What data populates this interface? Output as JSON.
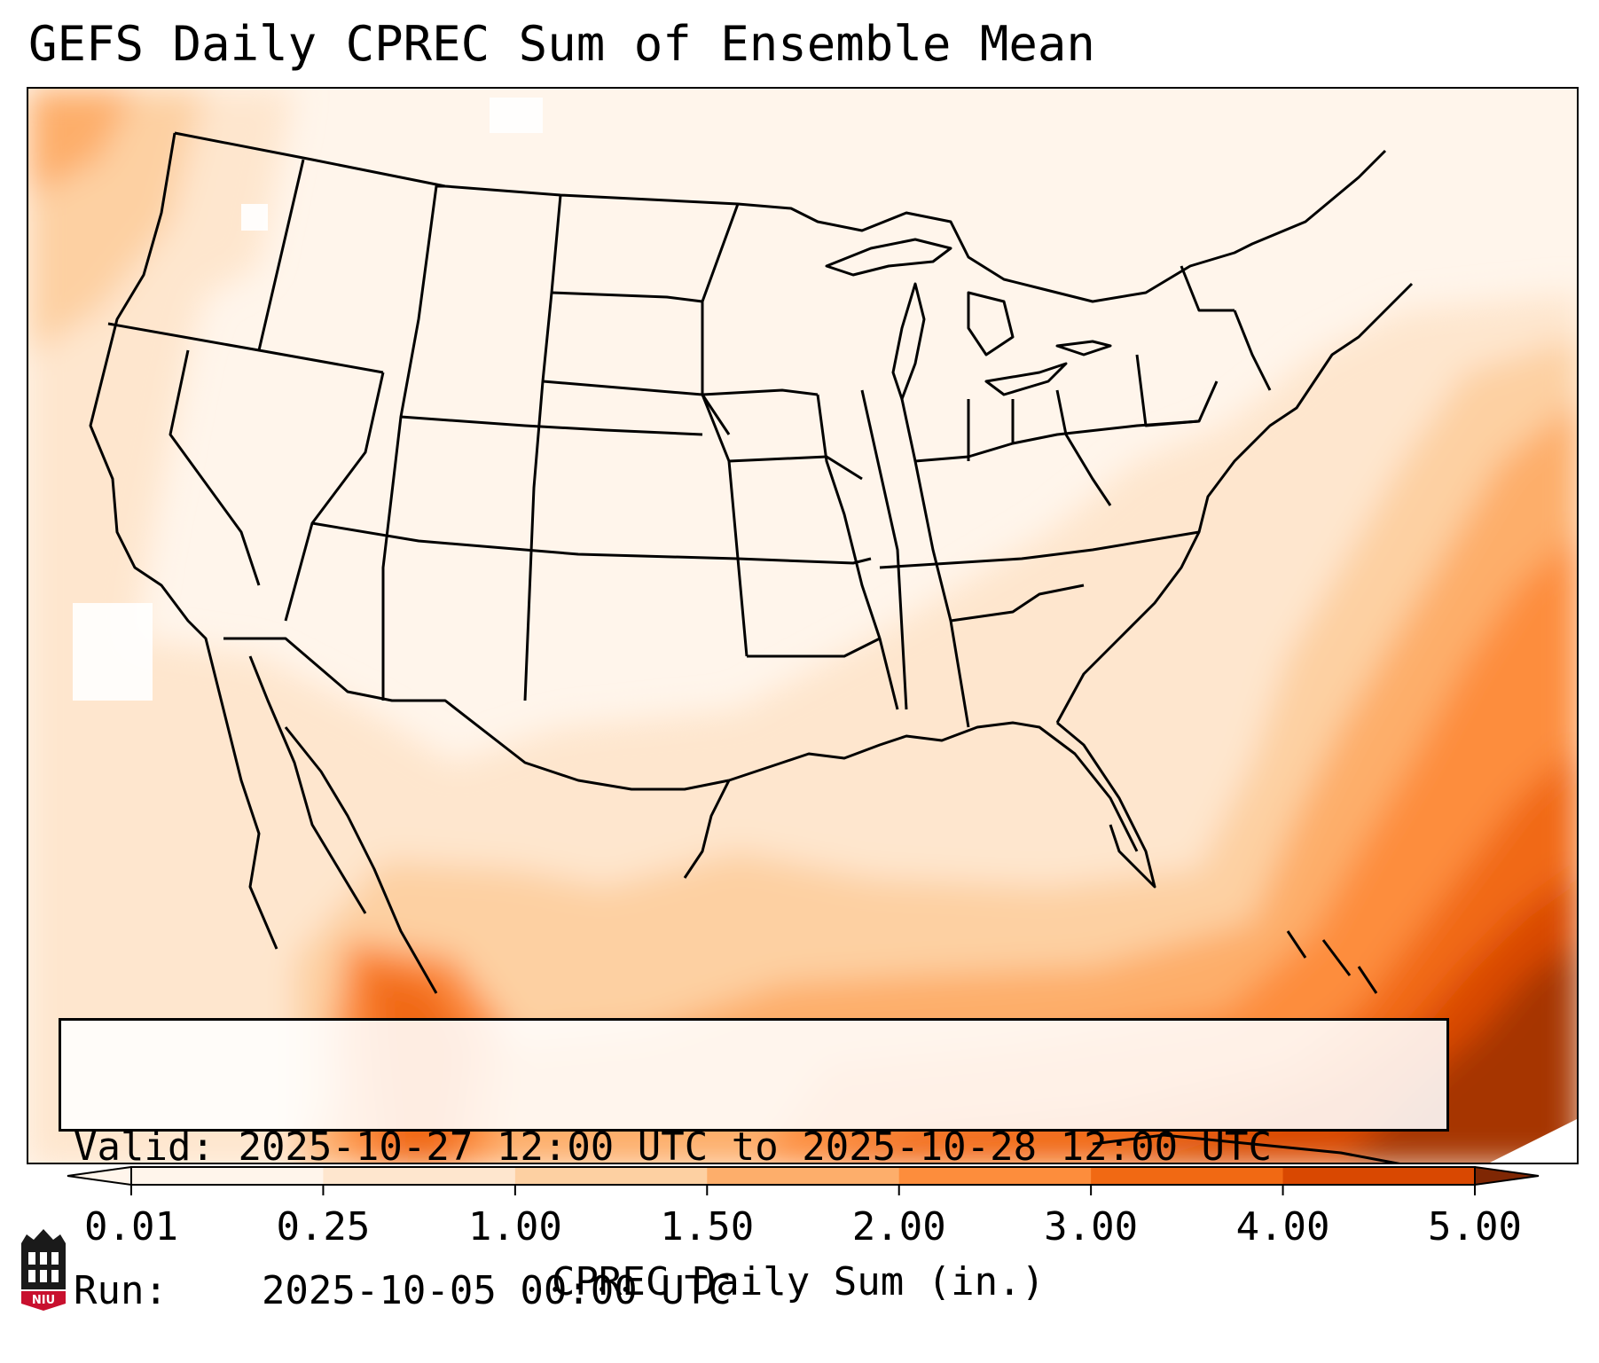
{
  "title": "GEFS Daily CPREC Sum of Ensemble Mean",
  "info": {
    "valid_label": "Valid:",
    "valid_value": "2025-10-27 12:00 UTC to 2025-10-28 12:00 UTC",
    "run_label": "Run:",
    "run_value": "2025-10-05 00:00 UTC"
  },
  "colorbar": {
    "label": "CPREC Daily Sum (in.)",
    "ticks": [
      "0.01",
      "0.25",
      "1.00",
      "1.50",
      "2.00",
      "3.00",
      "4.00",
      "5.00"
    ],
    "colors": [
      "#fff5eb",
      "#fee6ce",
      "#fdd0a2",
      "#fdae6b",
      "#fd8d3c",
      "#f16913",
      "#d94801",
      "#a63603",
      "#7f2704"
    ]
  },
  "logo": {
    "text": "NIU"
  }
}
